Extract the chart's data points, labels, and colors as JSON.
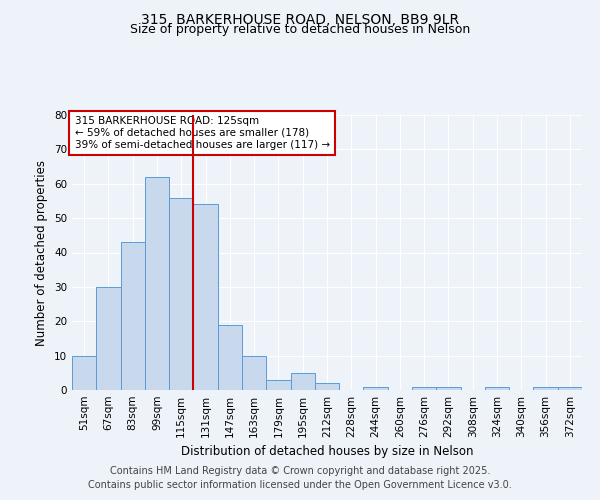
{
  "title": "315, BARKERHOUSE ROAD, NELSON, BB9 9LR",
  "subtitle": "Size of property relative to detached houses in Nelson",
  "xlabel": "Distribution of detached houses by size in Nelson",
  "ylabel": "Number of detached properties",
  "categories": [
    "51sqm",
    "67sqm",
    "83sqm",
    "99sqm",
    "115sqm",
    "131sqm",
    "147sqm",
    "163sqm",
    "179sqm",
    "195sqm",
    "212sqm",
    "228sqm",
    "244sqm",
    "260sqm",
    "276sqm",
    "292sqm",
    "308sqm",
    "324sqm",
    "340sqm",
    "356sqm",
    "372sqm"
  ],
  "values": [
    10,
    30,
    43,
    62,
    56,
    54,
    19,
    10,
    3,
    5,
    2,
    0,
    1,
    0,
    1,
    1,
    0,
    1,
    0,
    1,
    1
  ],
  "bar_color": "#c9d9ed",
  "bar_edge_color": "#5b9bd5",
  "bar_width": 1.0,
  "ylim": [
    0,
    80
  ],
  "yticks": [
    0,
    10,
    20,
    30,
    40,
    50,
    60,
    70,
    80
  ],
  "red_line_x": 4.5,
  "red_line_color": "#cc0000",
  "annotation_text": "315 BARKERHOUSE ROAD: 125sqm\n← 59% of detached houses are smaller (178)\n39% of semi-detached houses are larger (117) →",
  "annotation_box_color": "#ffffff",
  "annotation_box_edge_color": "#cc0000",
  "footnote1": "Contains HM Land Registry data © Crown copyright and database right 2025.",
  "footnote2": "Contains public sector information licensed under the Open Government Licence v3.0.",
  "background_color": "#eef2f9",
  "grid_color": "#ffffff",
  "title_fontsize": 10,
  "subtitle_fontsize": 9,
  "axis_label_fontsize": 8.5,
  "tick_fontsize": 7.5,
  "annotation_fontsize": 7.5,
  "footnote_fontsize": 7
}
